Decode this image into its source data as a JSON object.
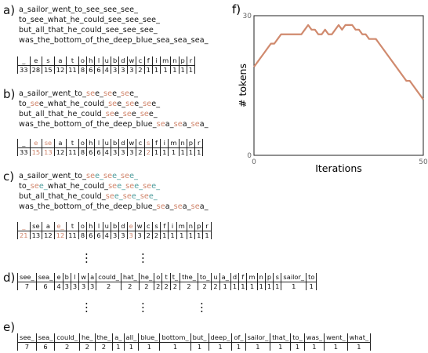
{
  "panels": {
    "a": {
      "label": "a)",
      "lines": [
        "a_sailor_went_to_see_see_see_",
        "to_see_what_he_could_see_see_see_",
        "but_all_that_he_could_see_see_see_",
        "was_the_bottom_of_the_deep_blue_sea_sea_sea_"
      ],
      "tokens": [
        "_",
        "e",
        "s",
        "a",
        "t",
        "o",
        "h",
        "l",
        "u",
        "b",
        "d",
        "w",
        "c",
        "f",
        "i",
        "m",
        "n",
        "p",
        "r"
      ],
      "counts": [
        "33",
        "28",
        "15",
        "12",
        "11",
        "8",
        "6",
        "6",
        "4",
        "3",
        "3",
        "3",
        "2",
        "1",
        "1",
        "1",
        "1",
        "1",
        "1"
      ]
    },
    "b": {
      "label": "b)",
      "lines": [
        "a_sailor_went_to_see_see_see_",
        "to_see_what_he_could_see_see_see_",
        "but_all_that_he_could_see_see_see_",
        "was_the_bottom_of_the_deep_blue_sea_sea_sea_"
      ],
      "tokens": [
        "_",
        "e",
        "se",
        "a",
        "t",
        "o",
        "h",
        "l",
        "u",
        "b",
        "d",
        "w",
        "c",
        "s",
        "f",
        "i",
        "m",
        "n",
        "p",
        "r"
      ],
      "counts": [
        "33",
        "15",
        "13",
        "12",
        "11",
        "8",
        "6",
        "6",
        "4",
        "3",
        "3",
        "3",
        "2",
        "2",
        "1",
        "1",
        "1",
        "1",
        "1",
        "1"
      ]
    },
    "c": {
      "label": "c)",
      "lines": [
        "a_sailor_went_to_see_see_see_",
        "to_see_what_he_could_see_see_see_",
        "but_all_that_he_could_see_see_see_",
        "was_the_bottom_of_the_deep_blue_sea_sea_sea_"
      ],
      "tokens": [
        "_",
        "se",
        "a",
        "e_",
        "t",
        "o",
        "h",
        "l",
        "u",
        "b",
        "d",
        "e",
        "w",
        "c",
        "s",
        "f",
        "i",
        "m",
        "n",
        "p",
        "r"
      ],
      "counts": [
        "21",
        "13",
        "12",
        "12",
        "11",
        "8",
        "6",
        "6",
        "4",
        "3",
        "3",
        "3",
        "3",
        "2",
        "2",
        "1",
        "1",
        "1",
        "1",
        "1",
        "1"
      ]
    },
    "d": {
      "label": "d)",
      "tokens": [
        "see_",
        "sea_",
        "e",
        "b",
        "l",
        "w",
        "a",
        "could_",
        "hat_",
        "he_",
        "o",
        "t",
        "t_",
        "the_",
        "to_",
        "u",
        "a_",
        "d",
        "f",
        "m",
        "n",
        "p",
        "s",
        "sailor_",
        "to"
      ],
      "counts": [
        "7",
        "6",
        "4",
        "3",
        "3",
        "3",
        "3",
        "2",
        "2",
        "2",
        "2",
        "2",
        "2",
        "2",
        "2",
        "2",
        "1",
        "1",
        "1",
        "1",
        "1",
        "1",
        "1",
        "1",
        "1"
      ]
    },
    "e": {
      "label": "e)",
      "tokens": [
        "see_",
        "sea_",
        "could_",
        "he_",
        "the_",
        "a_",
        "all_",
        "blue_",
        "bottom_",
        "but_",
        "deep_",
        "of_",
        "sailor_",
        "that_",
        "to_",
        "was_",
        "went_",
        "what_"
      ],
      "counts": [
        "7",
        "6",
        "2",
        "2",
        "2",
        "1",
        "1",
        "1",
        "1",
        "1",
        "1",
        "1",
        "1",
        "1",
        "1",
        "1",
        "1",
        "1"
      ]
    },
    "dots": "."
  },
  "chart_data": {
    "type": "line",
    "panel_label": "f)",
    "xlabel": "Iterations",
    "ylabel": "# tokens",
    "xlim": [
      0,
      50
    ],
    "ylim": [
      0,
      30
    ],
    "x_ticks": [
      0,
      50
    ],
    "y_ticks": [
      0,
      30
    ],
    "grid": false,
    "series": [
      {
        "color": "#d08a6e",
        "x": [
          0,
          1,
          2,
          3,
          4,
          5,
          6,
          7,
          8,
          9,
          10,
          11,
          12,
          13,
          14,
          15,
          16,
          17,
          18,
          19,
          20,
          21,
          22,
          23,
          24,
          25,
          26,
          27,
          28,
          29,
          30,
          31,
          32,
          33,
          34,
          35,
          36,
          37,
          38,
          39,
          40,
          41,
          42,
          43,
          44,
          45,
          46,
          47,
          48,
          49,
          50
        ],
        "y": [
          19,
          20,
          21,
          22,
          23,
          24,
          24,
          25,
          26,
          26,
          26,
          26,
          26,
          26,
          26,
          27,
          28,
          27,
          27,
          26,
          26,
          27,
          26,
          26,
          27,
          28,
          27,
          28,
          28,
          28,
          27,
          27,
          26,
          26,
          25,
          25,
          25,
          24,
          23,
          22,
          21,
          20,
          19,
          18,
          17,
          16,
          16,
          15,
          14,
          13,
          12
        ]
      }
    ]
  }
}
